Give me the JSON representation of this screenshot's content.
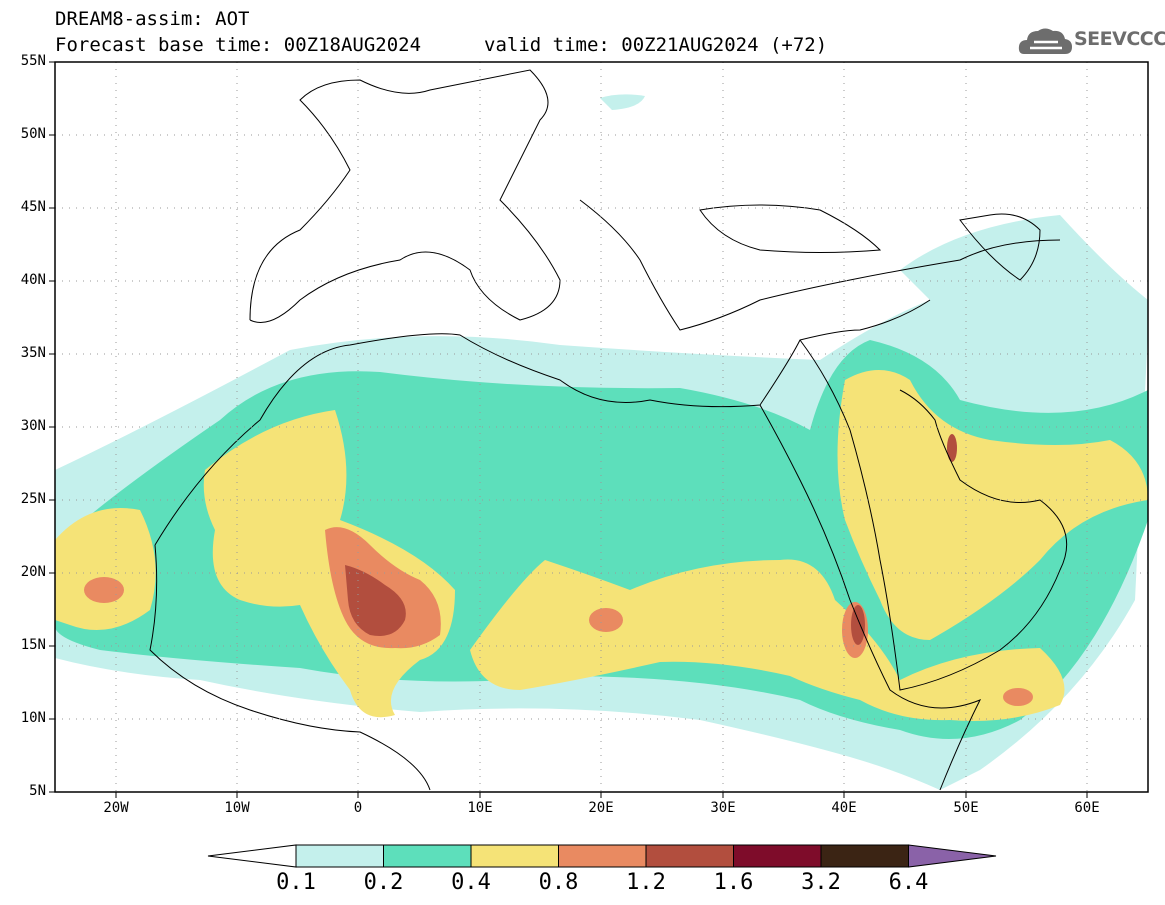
{
  "header": {
    "title": "DREAM8-assim: AOT",
    "forecast": "Forecast base time: 00Z18AUG2024",
    "valid": "valid time: 00Z21AUG2024 (+72)"
  },
  "logo": {
    "text": "SEEVCCC",
    "icon": "cloud-icon"
  },
  "map": {
    "extent": {
      "lon": [
        -25,
        65
      ],
      "lat": [
        5,
        55
      ]
    },
    "lat_labels": [
      "55N",
      "50N",
      "45N",
      "40N",
      "35N",
      "30N",
      "25N",
      "20N",
      "15N",
      "10N",
      "5N"
    ],
    "lon_labels": [
      "20W",
      "10W",
      "0",
      "10E",
      "20E",
      "30E",
      "40E",
      "50E",
      "60E"
    ],
    "grid": "dotted"
  },
  "colorbar": {
    "labels": [
      "0.1",
      "0.2",
      "0.4",
      "0.8",
      "1.2",
      "1.6",
      "3.2",
      "6.4"
    ],
    "colors": [
      "#c4f0ec",
      "#5ddfbb",
      "#f5e377",
      "#e98a61",
      "#b24e3e",
      "#7e0c2a",
      "#3b2414",
      "#8a62a8"
    ]
  }
}
